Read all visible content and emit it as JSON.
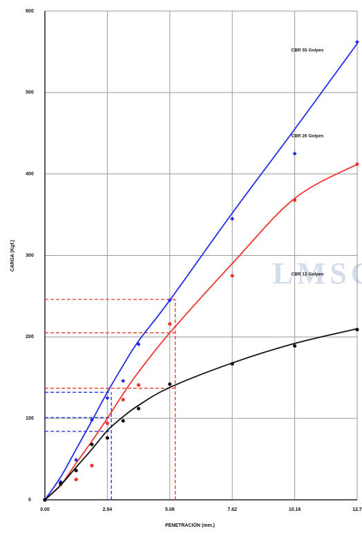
{
  "chart_data": {
    "type": "line",
    "ylabel": "CARGA (Kgf.)",
    "xlabel": "PENETRACIÓN (mm.)",
    "watermark": "LMSC",
    "x": [
      0,
      0.64,
      1.27,
      1.91,
      2.54,
      3.18,
      3.81,
      5.08,
      7.62,
      10.16,
      12.7
    ],
    "xlim": [
      0,
      12.7
    ],
    "ylim": [
      0,
      600
    ],
    "xticks": [
      {
        "value": 0,
        "label": "0.00"
      },
      2.54,
      5.08,
      7.62,
      10.16,
      12.7
    ],
    "yticks": [
      0,
      100,
      200,
      300,
      400,
      500,
      600
    ],
    "grid": true,
    "series": [
      {
        "name": "CBR 55 Golpes",
        "color": "#1f2be8",
        "marker": "diamond",
        "values": [
          0,
          22,
          49,
          98,
          125,
          146,
          191,
          245,
          345,
          425,
          562
        ],
        "fit": [
          0,
          28,
          62,
          97,
          132,
          165,
          195,
          245,
          352,
          455,
          560
        ]
      },
      {
        "name": "CBR 26 Golpes",
        "color": "#f0332e",
        "marker": "circle",
        "values": [
          0,
          19,
          25,
          42,
          94,
          123,
          141,
          216,
          275,
          368,
          412
        ],
        "fit": [
          0,
          18,
          45,
          72,
          100,
          130,
          157,
          205,
          290,
          370,
          412
        ]
      },
      {
        "name": "CBR 12 Golpes",
        "color": "#111111",
        "marker": "circle",
        "values": [
          0,
          20,
          36,
          68,
          76,
          97,
          112,
          142,
          167,
          189,
          209
        ],
        "fit": [
          0,
          18,
          40,
          62,
          85,
          102,
          116,
          138,
          168,
          192,
          210
        ]
      }
    ],
    "guides": [
      {
        "color": "#1f2be8",
        "x": 2.7,
        "y": [
          132,
          101,
          84
        ]
      },
      {
        "color": "#f0332e",
        "x": 5.3,
        "y": [
          246,
          205,
          137
        ]
      }
    ]
  }
}
